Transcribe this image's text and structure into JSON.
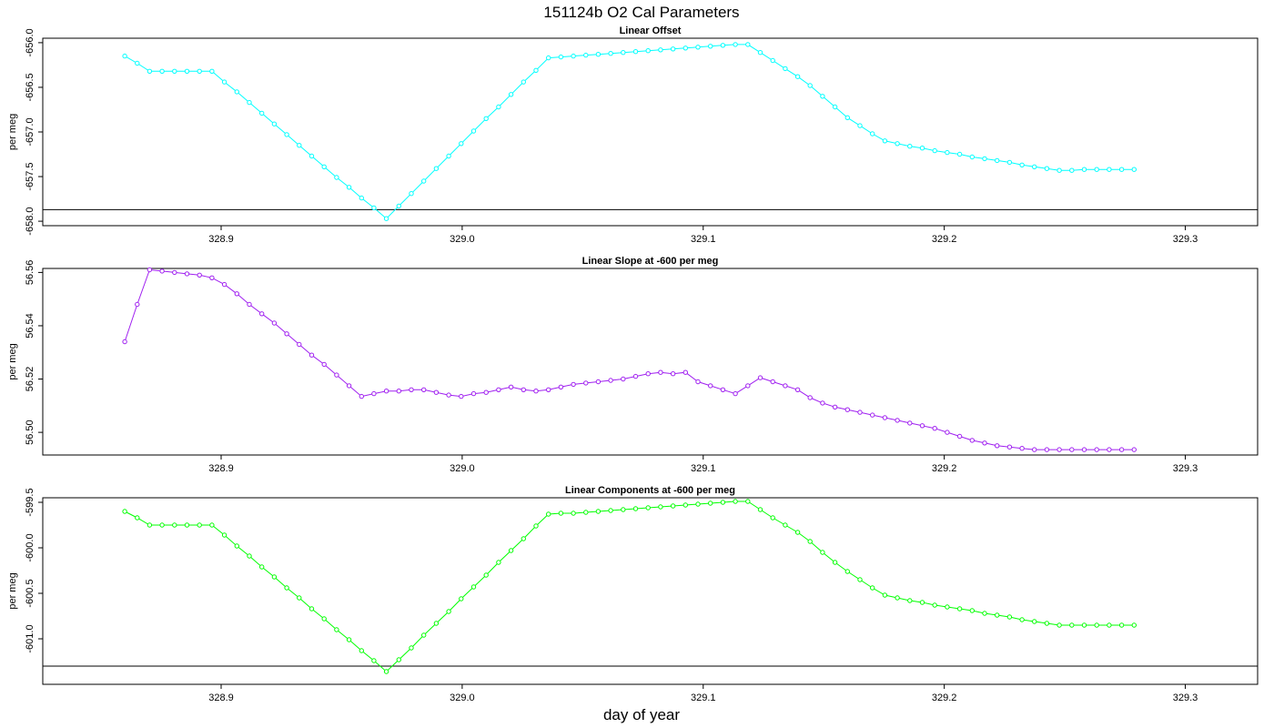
{
  "title": "151124b   O2 Cal Parameters",
  "xlabel": "day of year",
  "chart_data": [
    {
      "type": "line",
      "title": "Linear Offset",
      "ylabel": "per meg",
      "color": "#00ffff",
      "xlim": [
        328.826,
        329.33
      ],
      "ylim": [
        -658.05,
        -655.95
      ],
      "xticks": [
        "328.9",
        "329.0",
        "329.1",
        "329.2",
        "329.3"
      ],
      "yticks": [
        "-656.0",
        "-656.5",
        "-657.0",
        "-657.5",
        "-658.0"
      ],
      "hline": -657.87,
      "x_start": 328.86,
      "x_step": 0.00517,
      "values": [
        -656.15,
        -656.23,
        -656.32,
        -656.32,
        -656.32,
        -656.32,
        -656.32,
        -656.32,
        -656.44,
        -656.55,
        -656.67,
        -656.79,
        -656.91,
        -657.03,
        -657.15,
        -657.27,
        -657.39,
        -657.51,
        -657.62,
        -657.74,
        -657.85,
        -657.97,
        -657.83,
        -657.69,
        -657.55,
        -657.41,
        -657.27,
        -657.13,
        -656.99,
        -656.85,
        -656.72,
        -656.58,
        -656.44,
        -656.31,
        -656.17,
        -656.16,
        -656.15,
        -656.14,
        -656.13,
        -656.12,
        -656.11,
        -656.1,
        -656.09,
        -656.08,
        -656.07,
        -656.06,
        -656.05,
        -656.04,
        -656.03,
        -656.02,
        -656.02,
        -656.11,
        -656.2,
        -656.29,
        -656.38,
        -656.48,
        -656.6,
        -656.72,
        -656.84,
        -656.93,
        -657.02,
        -657.1,
        -657.13,
        -657.16,
        -657.18,
        -657.21,
        -657.23,
        -657.25,
        -657.28,
        -657.3,
        -657.32,
        -657.34,
        -657.37,
        -657.39,
        -657.41,
        -657.43,
        -657.43,
        -657.42,
        -657.42,
        -657.42,
        -657.42,
        -657.42
      ]
    },
    {
      "type": "line",
      "title": "Linear Slope at -600 per meg",
      "ylabel": "per meg",
      "color": "#a020f0",
      "xlim": [
        328.826,
        329.33
      ],
      "ylim": [
        56.4915,
        56.5615
      ],
      "xticks": [
        "328.9",
        "329.0",
        "329.1",
        "329.2",
        "329.3"
      ],
      "yticks": [
        "56.50",
        "56.52",
        "56.54",
        "56.56"
      ],
      "hline": 56.4915,
      "x_start": 328.86,
      "x_step": 0.00517,
      "values": [
        56.534,
        56.548,
        56.561,
        56.5605,
        56.56,
        56.5595,
        56.559,
        56.558,
        56.5555,
        56.552,
        56.548,
        56.5445,
        56.541,
        56.537,
        56.533,
        56.529,
        56.5255,
        56.5215,
        56.5175,
        56.5135,
        56.5145,
        56.5155,
        56.5155,
        56.516,
        56.516,
        56.515,
        56.514,
        56.5135,
        56.5145,
        56.515,
        56.516,
        56.517,
        56.516,
        56.5155,
        56.516,
        56.517,
        56.518,
        56.5185,
        56.519,
        56.5195,
        56.52,
        56.521,
        56.522,
        56.5225,
        56.522,
        56.5225,
        56.519,
        56.5175,
        56.516,
        56.5145,
        56.5175,
        56.5205,
        56.519,
        56.5175,
        56.516,
        56.513,
        56.511,
        56.5095,
        56.5085,
        56.5075,
        56.5065,
        56.5055,
        56.5045,
        56.5035,
        56.5025,
        56.5015,
        56.5,
        56.4985,
        56.497,
        56.496,
        56.495,
        56.4945,
        56.494,
        56.4935,
        56.4935,
        56.4935,
        56.4935,
        56.4935,
        56.4935,
        56.4935,
        56.4935,
        56.4935
      ]
    },
    {
      "type": "line",
      "title": "Linear Components at -600 per meg",
      "ylabel": "per meg",
      "color": "#00ff00",
      "xlim": [
        328.826,
        329.33
      ],
      "ylim": [
        -601.5,
        -599.45
      ],
      "xticks": [
        "328.9",
        "329.0",
        "329.1",
        "329.2",
        "329.3"
      ],
      "yticks": [
        "-599.5",
        "-600.0",
        "-600.5",
        "-601.0"
      ],
      "hline": -601.3,
      "x_start": 328.86,
      "x_step": 0.00517,
      "values": [
        -599.6,
        -599.67,
        -599.75,
        -599.75,
        -599.75,
        -599.75,
        -599.75,
        -599.75,
        -599.86,
        -599.98,
        -600.09,
        -600.21,
        -600.32,
        -600.44,
        -600.55,
        -600.67,
        -600.78,
        -600.9,
        -601.01,
        -601.13,
        -601.24,
        -601.36,
        -601.23,
        -601.1,
        -600.96,
        -600.83,
        -600.7,
        -600.56,
        -600.43,
        -600.3,
        -600.16,
        -600.03,
        -599.9,
        -599.76,
        -599.63,
        -599.62,
        -599.62,
        -599.61,
        -599.6,
        -599.59,
        -599.58,
        -599.57,
        -599.56,
        -599.55,
        -599.54,
        -599.53,
        -599.52,
        -599.51,
        -599.5,
        -599.49,
        -599.49,
        -599.58,
        -599.67,
        -599.75,
        -599.83,
        -599.93,
        -600.05,
        -600.16,
        -600.26,
        -600.35,
        -600.44,
        -600.52,
        -600.55,
        -600.58,
        -600.6,
        -600.63,
        -600.65,
        -600.67,
        -600.69,
        -600.72,
        -600.74,
        -600.76,
        -600.79,
        -600.81,
        -600.83,
        -600.85,
        -600.85,
        -600.85,
        -600.85,
        -600.85,
        -600.85,
        -600.85
      ]
    }
  ]
}
